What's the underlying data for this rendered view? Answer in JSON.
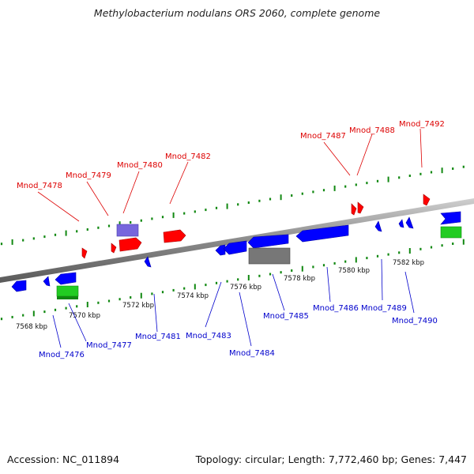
{
  "title": "Methylobacterium nodulans ORS 2060, complete genome",
  "footer": {
    "accession": "Accession: NC_011894",
    "summary": "Topology: circular; Length: 7,772,460 bp; Genes: 7,447"
  },
  "colors": {
    "forward_label": "#dd0000",
    "reverse_label": "#0000cc",
    "forward_gene": "#ff0000",
    "reverse_gene": "#0000ff",
    "rna": "#22cc22",
    "pseudo": "#777777",
    "misc": "#7766dd",
    "tick": "#118811",
    "backbone": "#8a8a8a"
  },
  "scale": {
    "unit": "kbp",
    "labels": [
      "7568 kbp",
      "7570 kbp",
      "7572 kbp",
      "7574 kbp",
      "7576 kbp",
      "7578 kbp",
      "7580 kbp",
      "7582 kbp"
    ]
  },
  "forward_labels": [
    "Mnod_7478",
    "Mnod_7479",
    "Mnod_7480",
    "Mnod_7482",
    "Mnod_7487",
    "Mnod_7488",
    "Mnod_7492"
  ],
  "reverse_labels": [
    "Mnod_7476",
    "Mnod_7477",
    "Mnod_7481",
    "Mnod_7483",
    "Mnod_7484",
    "Mnod_7485",
    "Mnod_7486",
    "Mnod_7489",
    "Mnod_7490"
  ]
}
